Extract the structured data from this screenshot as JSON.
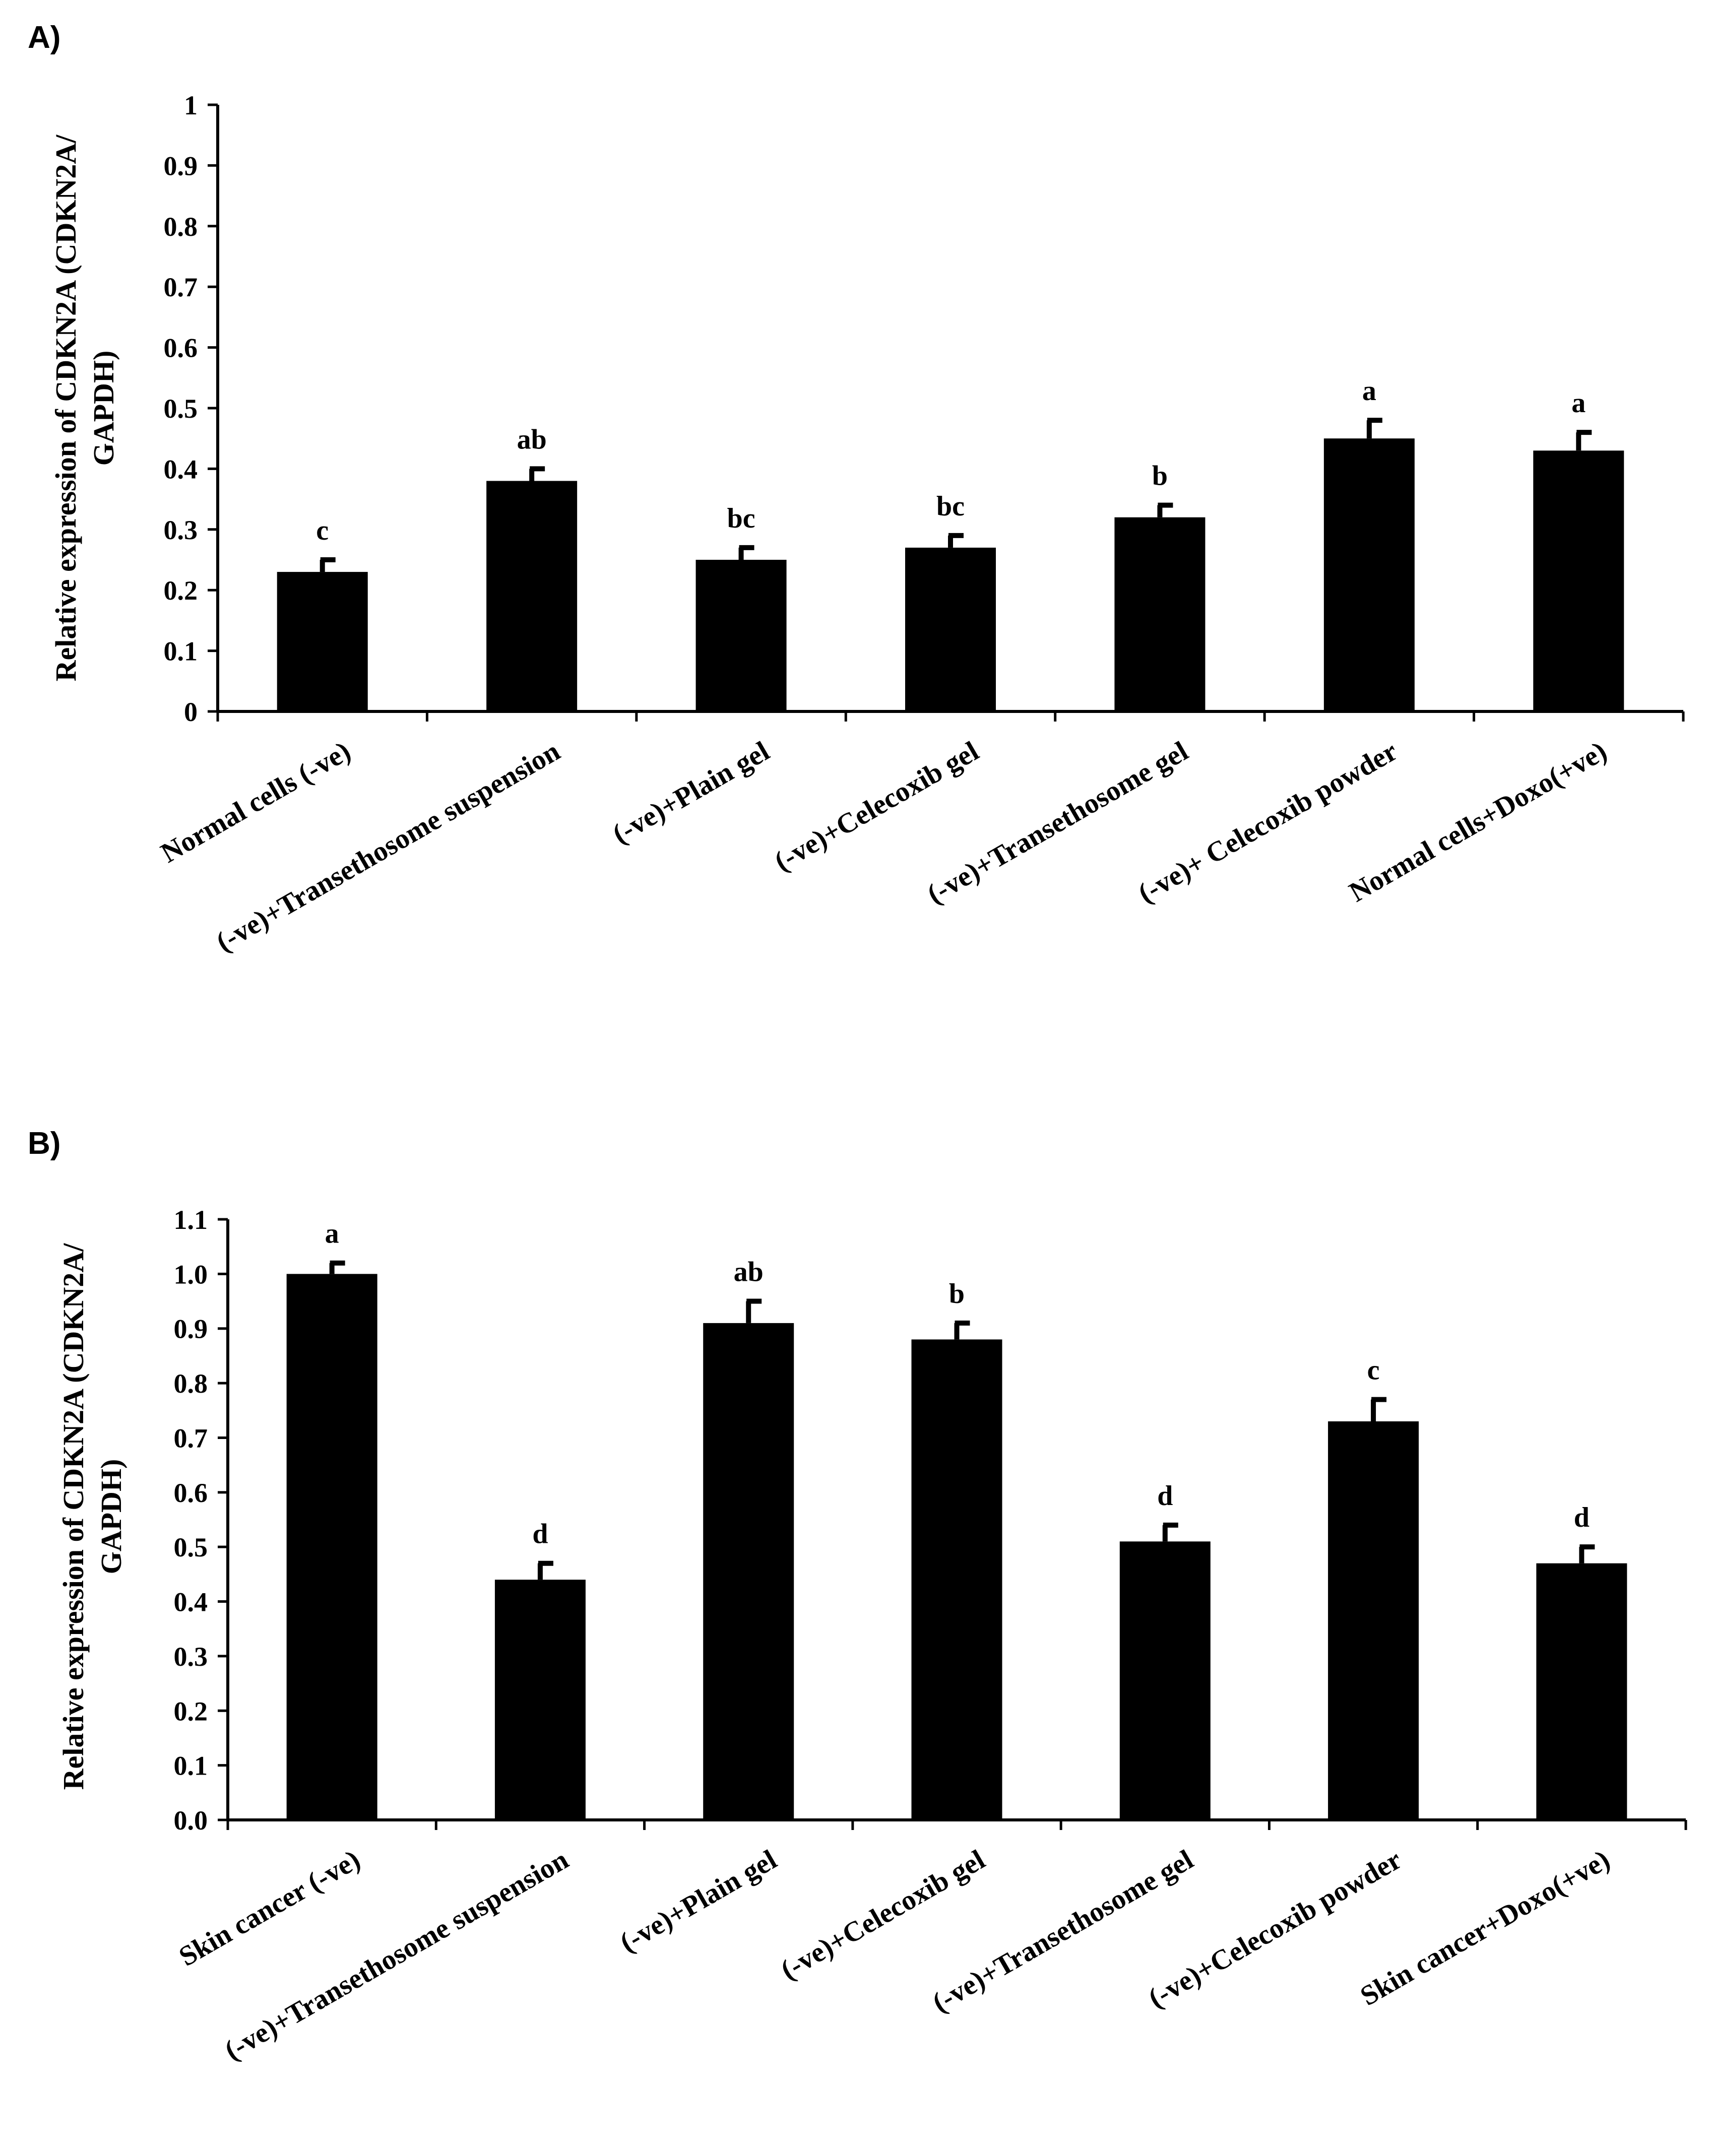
{
  "chart_data": [
    {
      "type": "bar",
      "panel_label": "A)",
      "title": "",
      "xlabel": "",
      "ylabel_lines": [
        "Relative expression of CDKN2A (CDKN2A/",
        "GAPDH)"
      ],
      "ylim": [
        0,
        1
      ],
      "yticks": [
        {
          "value": 0,
          "label": "0"
        },
        {
          "value": 0.1,
          "label": "0.1"
        },
        {
          "value": 0.2,
          "label": "0.2"
        },
        {
          "value": 0.3,
          "label": "0.3"
        },
        {
          "value": 0.4,
          "label": "0.4"
        },
        {
          "value": 0.5,
          "label": "0.5"
        },
        {
          "value": 0.6,
          "label": "0.6"
        },
        {
          "value": 0.7,
          "label": "0.7"
        },
        {
          "value": 0.8,
          "label": "0.8"
        },
        {
          "value": 0.9,
          "label": "0.9"
        },
        {
          "value": 1,
          "label": "1"
        }
      ],
      "categories": [
        "Normal cells (-ve)",
        "(-ve)+Transethosome suspension",
        "(-ve)+Plain gel",
        "(-ve)+Celecoxib gel",
        "(-ve)+Transethosome gel",
        "(-ve)+ Celecoxib powder",
        "Normal cells+Doxo(+ve)"
      ],
      "values": [
        0.23,
        0.38,
        0.25,
        0.27,
        0.32,
        0.45,
        0.43
      ],
      "errors": [
        0.02,
        0.02,
        0.02,
        0.02,
        0.02,
        0.03,
        0.03
      ],
      "significance": [
        "c",
        "ab",
        "bc",
        "bc",
        "b",
        "a",
        "a"
      ],
      "bar_color": "#000000"
    },
    {
      "type": "bar",
      "panel_label": "B)",
      "title": "",
      "xlabel": "",
      "ylabel_lines": [
        "Relative expression of CDKN2A (CDKN2A/",
        "GAPDH)"
      ],
      "ylim": [
        0,
        1.1
      ],
      "yticks": [
        {
          "value": 0.0,
          "label": "0.0"
        },
        {
          "value": 0.1,
          "label": "0.1"
        },
        {
          "value": 0.2,
          "label": "0.2"
        },
        {
          "value": 0.3,
          "label": "0.3"
        },
        {
          "value": 0.4,
          "label": "0.4"
        },
        {
          "value": 0.5,
          "label": "0.5"
        },
        {
          "value": 0.6,
          "label": "0.6"
        },
        {
          "value": 0.7,
          "label": "0.7"
        },
        {
          "value": 0.8,
          "label": "0.8"
        },
        {
          "value": 0.9,
          "label": "0.9"
        },
        {
          "value": 1.0,
          "label": "1.0"
        },
        {
          "value": 1.1,
          "label": "1.1"
        }
      ],
      "categories": [
        "Skin cancer (-ve)",
        "(-ve)+Transethosome suspension",
        "(-ve)+Plain gel",
        "(-ve)+Celecoxib gel",
        "(-ve)+Transethosome gel",
        "(-ve)+Celecoxib powder",
        "Skin cancer+Doxo(+ve)"
      ],
      "values": [
        1.0,
        0.44,
        0.91,
        0.88,
        0.51,
        0.73,
        0.47
      ],
      "errors": [
        0.02,
        0.03,
        0.04,
        0.03,
        0.03,
        0.04,
        0.03
      ],
      "significance": [
        "a",
        "d",
        "ab",
        "b",
        "d",
        "c",
        "d"
      ],
      "bar_color": "#000000"
    }
  ]
}
